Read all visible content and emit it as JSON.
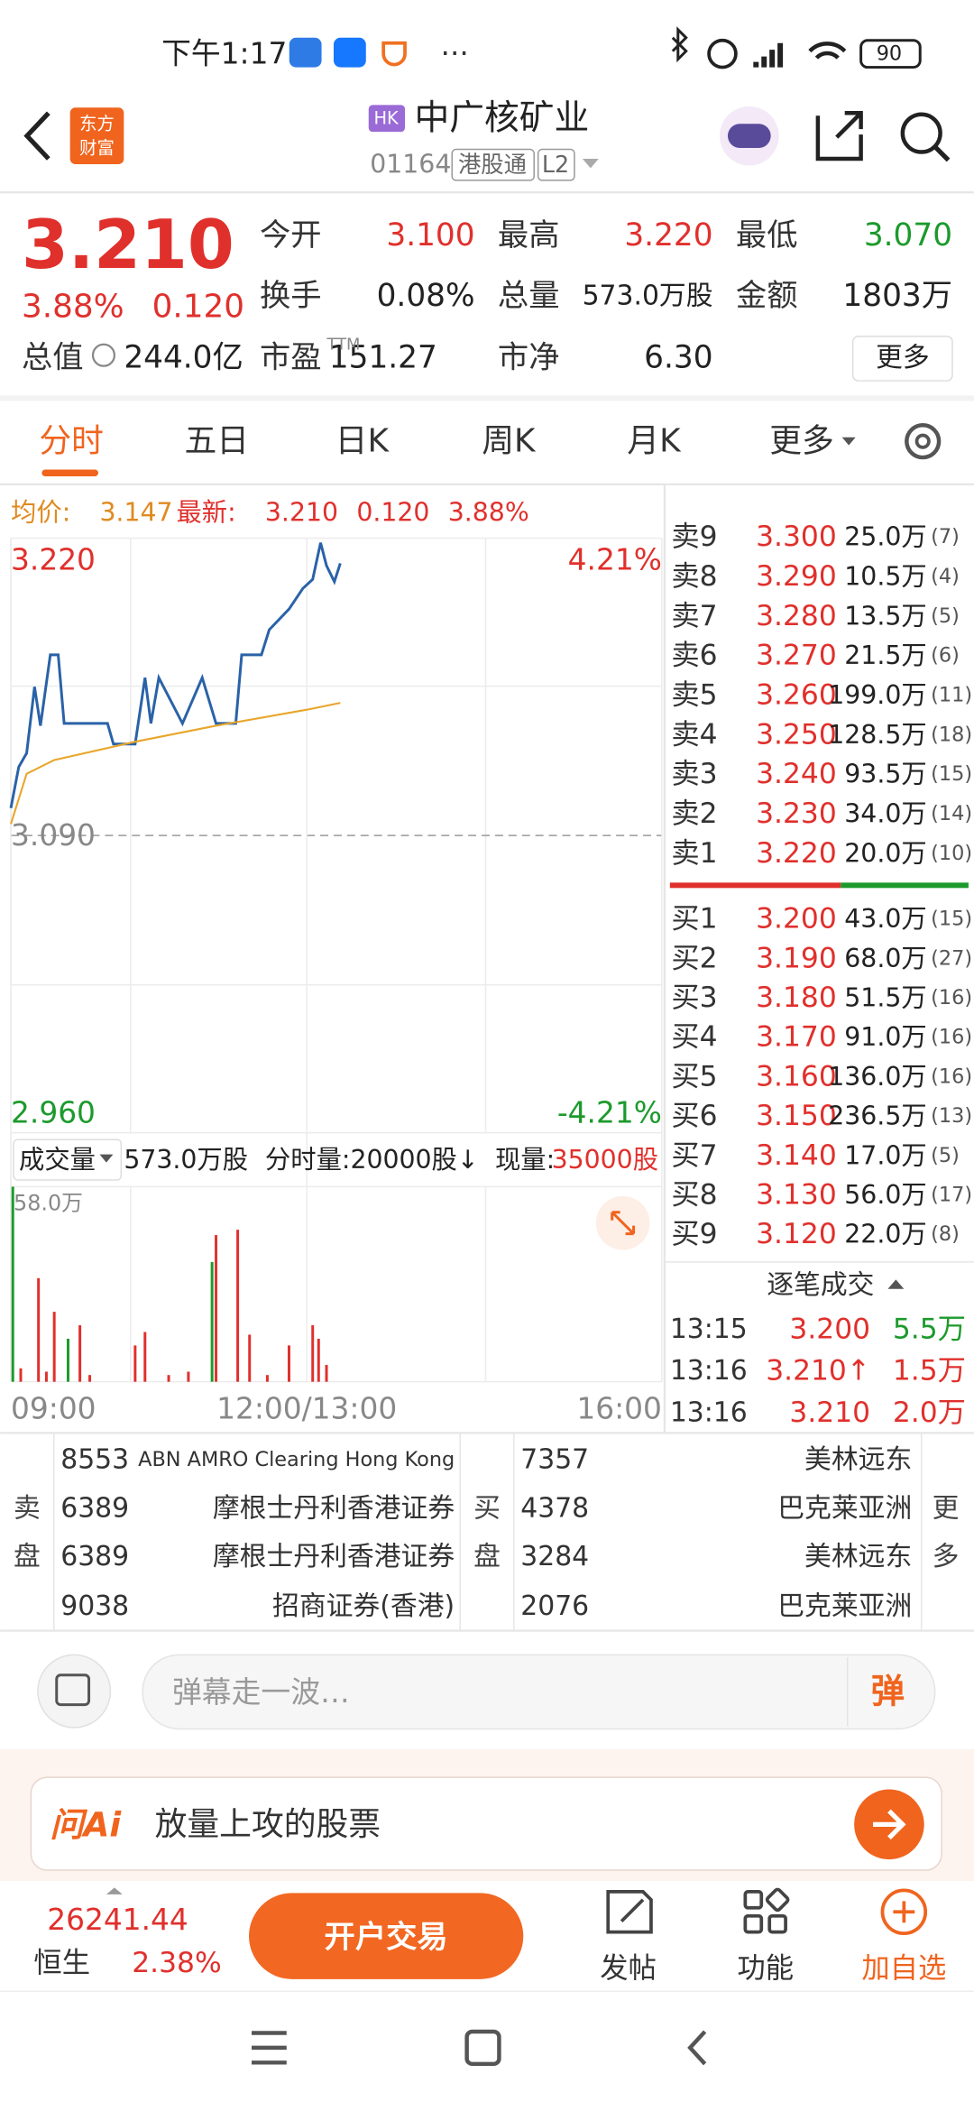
{
  "status_bar": {
    "time": "下午1:17",
    "battery": "90"
  },
  "header": {
    "logo": [
      "东方",
      "财富"
    ],
    "market": "HK",
    "name": "中广核矿业",
    "code": "01164",
    "tags": [
      "港股通",
      "L2"
    ]
  },
  "quote": {
    "price": "3.210",
    "change_pct": "3.88%",
    "change": "0.120",
    "fields": [
      {
        "label": "今开",
        "value": "3.100"
      },
      {
        "label": "最高",
        "value": "3.220"
      },
      {
        "label": "最低",
        "value": "3.070"
      },
      {
        "label": "换手",
        "value": "0.08%"
      },
      {
        "label": "总量",
        "value": "573.0万股"
      },
      {
        "label": "金额",
        "value": "1803万"
      },
      {
        "label": "总值",
        "value": "244.0亿"
      },
      {
        "label": "市盈",
        "sup": "TTM",
        "value": "151.27"
      },
      {
        "label": "市净",
        "value": "6.30"
      }
    ],
    "more": "更多"
  },
  "tabs": [
    "分时",
    "五日",
    "日K",
    "周K",
    "月K",
    "更多"
  ],
  "summary": {
    "avg_label": "均价:",
    "avg": "3.147",
    "latest_label": "最新:",
    "latest": "3.210",
    "change": "0.120",
    "change_pct": "3.88%"
  },
  "chart_data": [
    {
      "type": "line",
      "xlim": [
        0,
        330
      ],
      "xticks": [
        {
          "value": 0,
          "label": "09:00"
        },
        {
          "value": 150,
          "label": "12:00/13:00"
        },
        {
          "value": 330,
          "label": "16:00"
        }
      ],
      "ylim": [
        2.96,
        3.22
      ],
      "yticks": [
        {
          "value": 3.22,
          "label": "3.220"
        },
        {
          "value": 3.09,
          "label": "3.090"
        },
        {
          "value": 2.96,
          "label": "2.960"
        }
      ],
      "y2lim": [
        -4.21,
        4.21
      ],
      "y2ticks": [
        {
          "value": 4.21,
          "label": "4.21%"
        },
        {
          "value": -4.21,
          "label": "-4.21%"
        }
      ],
      "series": [
        {
          "color": "#2a62a8",
          "x": [
            0,
            4,
            8,
            12,
            15,
            20,
            24,
            27,
            49,
            52,
            63,
            68,
            71,
            75,
            87,
            97,
            104,
            114,
            117,
            127,
            131,
            141,
            148,
            153,
            157,
            160,
            164,
            167
          ],
          "values": [
            3.102,
            3.12,
            3.126,
            3.155,
            3.138,
            3.169,
            3.169,
            3.139,
            3.139,
            3.13,
            3.13,
            3.159,
            3.139,
            3.159,
            3.139,
            3.159,
            3.139,
            3.139,
            3.169,
            3.169,
            3.18,
            3.189,
            3.198,
            3.202,
            3.218,
            3.208,
            3.201,
            3.209
          ]
        },
        {
          "color": "#e8a62a",
          "x": [
            0,
            8,
            22,
            63,
            104,
            150,
            167
          ],
          "values": [
            3.095,
            3.117,
            3.123,
            3.131,
            3.138,
            3.145,
            3.148
          ]
        }
      ]
    },
    {
      "type": "bar",
      "xlim": [
        0,
        330
      ],
      "ylim": [
        0,
        58
      ],
      "yticks": [
        {
          "value": 58,
          "label": "58.0万"
        }
      ],
      "series": [
        {
          "color": "#1c9a2c",
          "x": [
            1,
            29,
            102
          ],
          "values": [
            58,
            12.8,
            35.6
          ]
        },
        {
          "color": "#e0302c",
          "x": [
            5,
            14,
            18,
            22,
            35,
            40,
            63,
            68,
            80,
            90,
            104,
            115,
            121,
            130,
            141,
            153,
            156,
            160
          ],
          "values": [
            4,
            30.8,
            3,
            20.8,
            16.8,
            2,
            10.8,
            14.8,
            2,
            3,
            43.6,
            45.2,
            14,
            2,
            10.8,
            16.8,
            12.8,
            5
          ]
        }
      ]
    }
  ],
  "volume_bar": {
    "label": "成交量",
    "total": "573.0万股",
    "interval": "分时量:20000股↓",
    "current_label": "现量:",
    "current": "35000股"
  },
  "order_book": {
    "asks": [
      {
        "label": "卖9",
        "price": "3.300",
        "volume": "25.0万",
        "orders": "(7)"
      },
      {
        "label": "卖8",
        "price": "3.290",
        "volume": "10.5万",
        "orders": "(4)"
      },
      {
        "label": "卖7",
        "price": "3.280",
        "volume": "13.5万",
        "orders": "(5)"
      },
      {
        "label": "卖6",
        "price": "3.270",
        "volume": "21.5万",
        "orders": "(6)"
      },
      {
        "label": "卖5",
        "price": "3.260",
        "volume": "199.0万",
        "orders": "(11)"
      },
      {
        "label": "卖4",
        "price": "3.250",
        "volume": "128.5万",
        "orders": "(18)"
      },
      {
        "label": "卖3",
        "price": "3.240",
        "volume": "93.5万",
        "orders": "(15)"
      },
      {
        "label": "卖2",
        "price": "3.230",
        "volume": "34.0万",
        "orders": "(14)"
      },
      {
        "label": "卖1",
        "price": "3.220",
        "volume": "20.0万",
        "orders": "(10)"
      }
    ],
    "bids": [
      {
        "label": "买1",
        "price": "3.200",
        "volume": "43.0万",
        "orders": "(15)"
      },
      {
        "label": "买2",
        "price": "3.190",
        "volume": "68.0万",
        "orders": "(27)"
      },
      {
        "label": "买3",
        "price": "3.180",
        "volume": "51.5万",
        "orders": "(16)"
      },
      {
        "label": "买4",
        "price": "3.170",
        "volume": "91.0万",
        "orders": "(16)"
      },
      {
        "label": "买5",
        "price": "3.160",
        "volume": "136.0万",
        "orders": "(16)"
      },
      {
        "label": "买6",
        "price": "3.150",
        "volume": "236.5万",
        "orders": "(13)"
      },
      {
        "label": "买7",
        "price": "3.140",
        "volume": "17.0万",
        "orders": "(5)"
      },
      {
        "label": "买8",
        "price": "3.130",
        "volume": "56.0万",
        "orders": "(17)"
      },
      {
        "label": "买9",
        "price": "3.120",
        "volume": "22.0万",
        "orders": "(8)"
      }
    ]
  },
  "trades": {
    "title": "逐笔成交",
    "rows": [
      {
        "time": "13:15",
        "price": "3.200",
        "volume": "5.5万"
      },
      {
        "time": "13:16",
        "price": "3.210↑",
        "volume": "1.5万"
      },
      {
        "time": "13:16",
        "price": "3.210",
        "volume": "2.0万"
      }
    ]
  },
  "brokers": {
    "sell_label": [
      "卖",
      "盘"
    ],
    "sell": [
      {
        "id": "8553",
        "name": "ABN AMRO Clearing Hong Kong"
      },
      {
        "id": "6389",
        "name": "摩根士丹利香港证券"
      },
      {
        "id": "6389",
        "name": "摩根士丹利香港证券"
      },
      {
        "id": "9038",
        "name": "招商证券(香港)"
      }
    ],
    "buy_label": [
      "买",
      "盘"
    ],
    "buy": [
      {
        "id": "7357",
        "name": "美林远东"
      },
      {
        "id": "4378",
        "name": "巴克莱亚洲"
      },
      {
        "id": "3284",
        "name": "美林远东"
      },
      {
        "id": "2076",
        "name": "巴克莱亚洲"
      }
    ],
    "more": [
      "更",
      "多"
    ]
  },
  "comment": {
    "placeholder": "弹幕走一波…",
    "button": "弹"
  },
  "ai": {
    "logo": "问Ai",
    "prompt": "放量上攻的股票"
  },
  "bottom": {
    "index_value": "26241.44",
    "index_name": "恒生",
    "index_pct": "2.38%",
    "trade_button": "开户交易",
    "actions": [
      "发帖",
      "功能",
      "加自选"
    ]
  }
}
